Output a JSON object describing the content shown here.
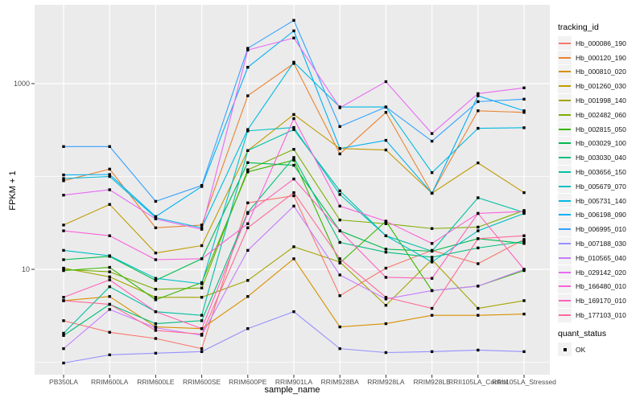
{
  "legend": {
    "tracking_title": "tracking_id",
    "quant_title": "quant_status",
    "quant_items": [
      "OK"
    ]
  },
  "chart_data": {
    "type": "line",
    "title": "",
    "xlabel": "sample_name",
    "ylabel": "FPKM + 1",
    "y_scale": "log10",
    "ylim": [
      0.75,
      7000
    ],
    "grid": true,
    "legend_position": "right",
    "panel_bg": "#EBEBEB",
    "grid_color": "#FFFFFF",
    "point_color": "#000000",
    "axis_text_color": "#4D4D4D",
    "y_ticks": [
      {
        "value": 10,
        "label": "10"
      },
      {
        "value": 1000,
        "label": "1000"
      }
    ],
    "y_minor_gridlines": [
      1,
      100
    ],
    "categories": [
      "PB350LA",
      "RRIM600LA",
      "RRIM600LE",
      "RRIM600SE",
      "RRIM600PE",
      "RRIM901LA",
      "RRIM928BA",
      "RRIM928LA",
      "RRIM928LE",
      "RRII105LA_Control",
      "RRII105LA_Stressed"
    ],
    "series": [
      {
        "name": "Hb_000086_190",
        "color": "#F8766D",
        "values": [
          2.8,
          2.1,
          1.8,
          1.4,
          52,
          62,
          5.2,
          10.3,
          16,
          11.5,
          21
        ]
      },
      {
        "name": "Hb_000120_190",
        "color": "#EA8331",
        "values": [
          90,
          120,
          28,
          30,
          740,
          1650,
          175,
          490,
          66,
          510,
          490
        ]
      },
      {
        "name": "Hb_000810_020",
        "color": "#D89000",
        "values": [
          4.6,
          5.1,
          2.4,
          2.3,
          5.1,
          13,
          2.4,
          2.6,
          3.2,
          3.2,
          3.3
        ]
      },
      {
        "name": "Hb_001260_030",
        "color": "#C09B00",
        "values": [
          30,
          50,
          15,
          18,
          190,
          465,
          200,
          193,
          66,
          140,
          67
        ]
      },
      {
        "name": "Hb_001998_140",
        "color": "#A3A500",
        "values": [
          10.3,
          8.3,
          5.0,
          5.0,
          7.6,
          17.5,
          12,
          4.1,
          12.7,
          3.8,
          4.6
        ]
      },
      {
        "name": "Hb_002482_060",
        "color": "#7CAE00",
        "values": [
          10,
          9.4,
          6.1,
          6.3,
          118,
          196,
          34,
          31,
          27.5,
          28.5,
          43
        ]
      },
      {
        "name": "Hb_002815_050",
        "color": "#39B600",
        "values": [
          9.7,
          10.5,
          4.7,
          7.2,
          112,
          150,
          11.7,
          33,
          5.9,
          6.6,
          9.7
        ]
      },
      {
        "name": "Hb_003029_100",
        "color": "#00BB4E",
        "values": [
          12.7,
          13.8,
          7.6,
          13,
          141,
          132,
          26,
          16.5,
          15.7,
          21.4,
          19
        ]
      },
      {
        "name": "Hb_003030_040",
        "color": "#00BF7D",
        "values": [
          1.94,
          4.2,
          2.6,
          2.8,
          41,
          160,
          19.5,
          15.3,
          13.5,
          17,
          20
        ]
      },
      {
        "name": "Hb_003656_150",
        "color": "#00C1A3",
        "values": [
          2.05,
          6.5,
          3.5,
          3.2,
          190,
          320,
          70,
          23,
          15.7,
          59,
          41
        ]
      },
      {
        "name": "Hb_005679_070",
        "color": "#00BFC4",
        "values": [
          16,
          14,
          8.0,
          7.0,
          310,
          337,
          64,
          23,
          12,
          26,
          40
        ]
      },
      {
        "name": "Hb_005731_140",
        "color": "#00BAE0",
        "values": [
          95,
          100,
          36,
          28,
          320,
          1700,
          560,
          560,
          110,
          330,
          335
        ]
      },
      {
        "name": "Hb_006198_090",
        "color": "#00B0F6",
        "values": [
          104,
          105,
          37,
          78,
          1500,
          3700,
          200,
          245,
          66,
          740,
          510
        ]
      },
      {
        "name": "Hb_006995_010",
        "color": "#35A2FF",
        "values": [
          210,
          210,
          54,
          80,
          2400,
          4800,
          345,
          560,
          240,
          640,
          680
        ]
      },
      {
        "name": "Hb_007188_030",
        "color": "#9590FF",
        "values": [
          0.98,
          1.2,
          1.25,
          1.3,
          2.3,
          3.5,
          1.4,
          1.27,
          1.3,
          1.35,
          1.3
        ]
      },
      {
        "name": "Hb_010565_040",
        "color": "#C77CFF",
        "values": [
          1.4,
          3.7,
          2.35,
          1.95,
          16,
          48,
          8.7,
          4.8,
          5.9,
          6.6,
          10
        ]
      },
      {
        "name": "Hb_029142_020",
        "color": "#E76BF3",
        "values": [
          63,
          72,
          35,
          27,
          2300,
          3100,
          550,
          1050,
          290,
          780,
          900
        ]
      },
      {
        "name": "Hb_166480_010",
        "color": "#FA62DB",
        "values": [
          26,
          23,
          12.7,
          13,
          31,
          420,
          48,
          33,
          19,
          40,
          42
        ]
      },
      {
        "name": "Hb_169170_010",
        "color": "#FF62BC",
        "values": [
          5.0,
          7.7,
          3.5,
          2.3,
          40,
          94,
          26,
          8.2,
          8.0,
          40,
          10
        ]
      },
      {
        "name": "Hb_177103_010",
        "color": "#FF6A98",
        "values": [
          4.6,
          4.2,
          2.2,
          2.0,
          28,
          67,
          13,
          5.0,
          3.8,
          21.4,
          23
        ]
      }
    ]
  }
}
